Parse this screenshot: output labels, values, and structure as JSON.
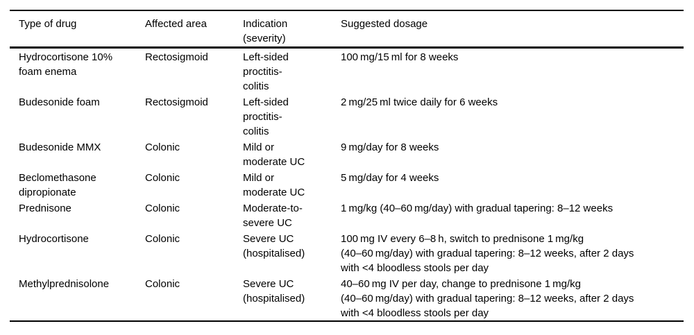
{
  "page": {
    "background_color": "#ffffff",
    "text_color": "#000000",
    "rule_color": "#000000"
  },
  "table": {
    "columns": [
      "Type of drug",
      "Affected area",
      "Indication\n(severity)",
      "Suggested dosage"
    ],
    "rows": [
      {
        "drug": "Hydrocortisone 10%\nfoam enema",
        "area": "Rectosigmoid",
        "indication": "Left-sided\nproctitis-\ncolitis",
        "dosage": "100 mg/15 ml for 8 weeks"
      },
      {
        "drug": "Budesonide foam",
        "area": "Rectosigmoid",
        "indication": "Left-sided\nproctitis-\ncolitis",
        "dosage": "2 mg/25 ml twice daily for 6 weeks"
      },
      {
        "drug": "Budesonide MMX",
        "area": "Colonic",
        "indication": "Mild or\nmoderate UC",
        "dosage": "9 mg/day for 8 weeks"
      },
      {
        "drug": "Beclomethasone\ndipropionate",
        "area": "Colonic",
        "indication": "Mild or\nmoderate UC",
        "dosage": "5 mg/day for 4 weeks"
      },
      {
        "drug": "Prednisone",
        "area": "Colonic",
        "indication": "Moderate-to-\nsevere UC",
        "dosage": "1 mg/kg (40–60 mg/day) with gradual tapering: 8–12 weeks"
      },
      {
        "drug": "Hydrocortisone",
        "area": "Colonic",
        "indication": "Severe UC\n(hospitalised)",
        "dosage": "100 mg IV every 6–8 h, switch to prednisone 1 mg/kg\n(40–60 mg/day) with gradual tapering: 8–12 weeks, after 2 days\nwith <4 bloodless stools per day"
      },
      {
        "drug": "Methylprednisolone",
        "area": "Colonic",
        "indication": "Severe UC\n(hospitalised)",
        "dosage": "40–60 mg IV per day, change to prednisone 1 mg/kg\n(40–60 mg/day) with gradual tapering: 8–12 weeks, after 2 days\nwith <4 bloodless stools per day"
      }
    ]
  }
}
